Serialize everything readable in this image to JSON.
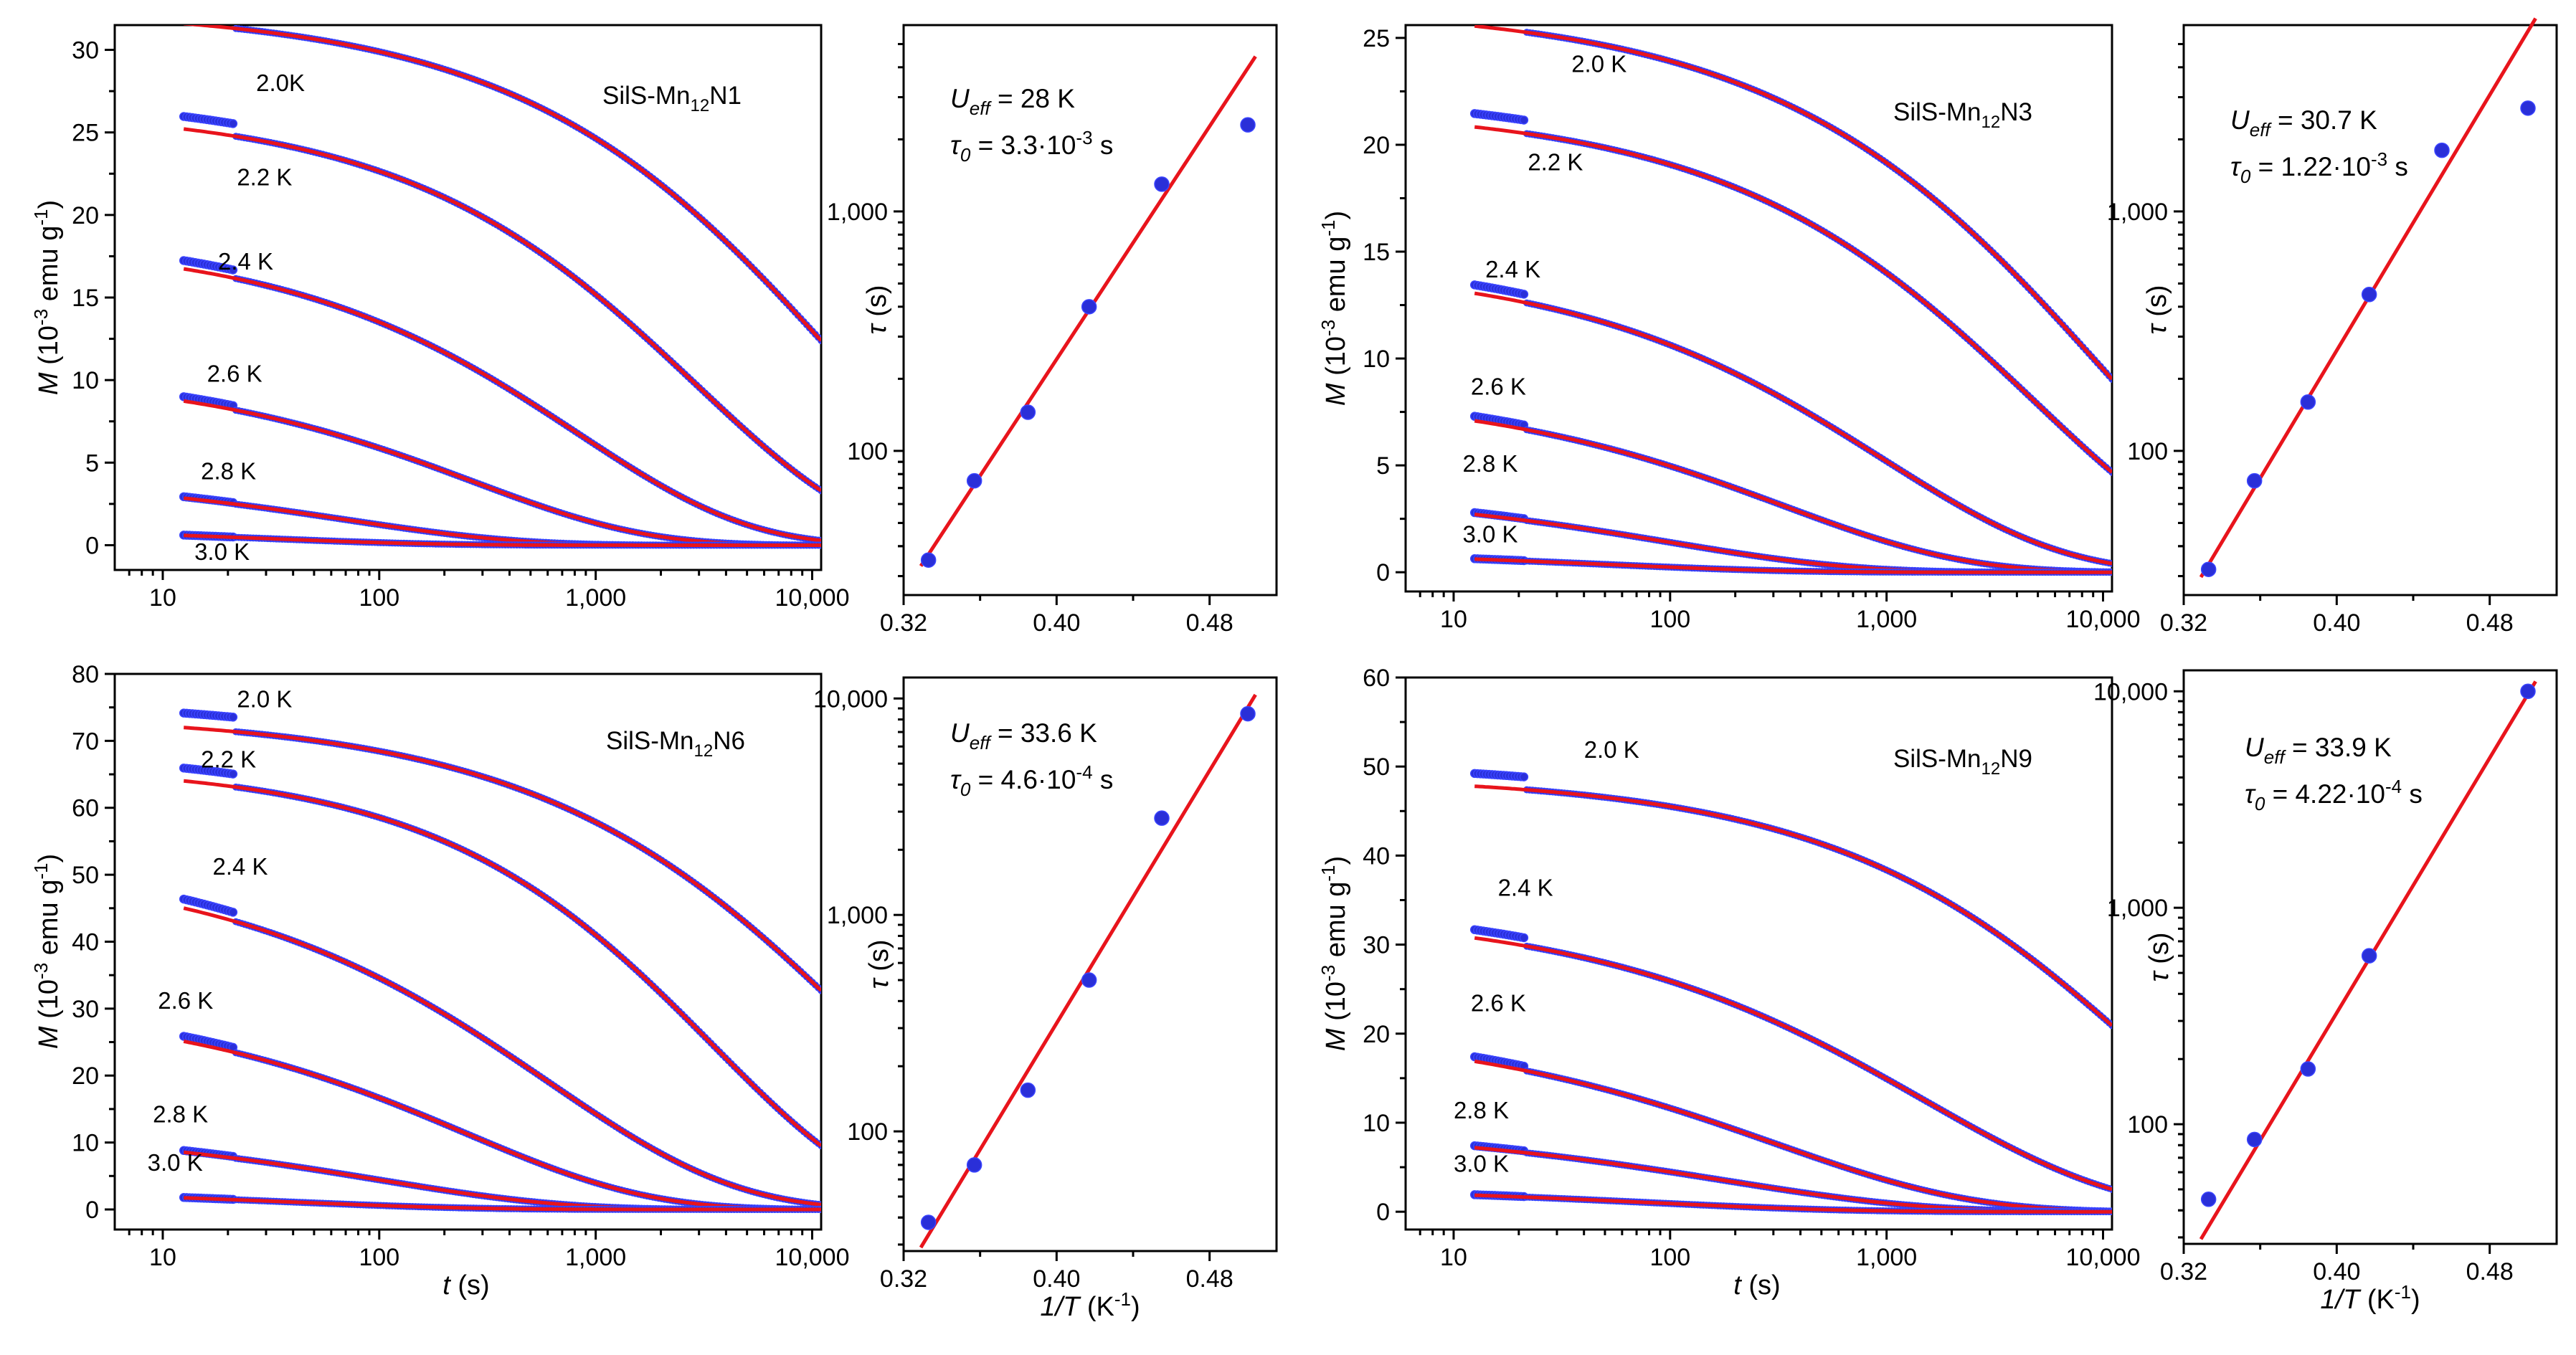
{
  "figure": {
    "colors": {
      "fit": "#e8141c",
      "data": "#2a2fd8",
      "data_edge": "#3a44ff"
    }
  },
  "chart_data": [
    {
      "id": "relax-n1",
      "type": "scatter",
      "sample": "SilS-Mn",
      "sample_sub": "12",
      "sample_suffix": "N1",
      "xscale": "log",
      "xlim": [
        6,
        11000
      ],
      "ylim": [
        -1.5,
        31.5
      ],
      "xticks": [
        10,
        100,
        1000,
        10000
      ],
      "xtick_labels": [
        "10",
        "100",
        "1,000",
        "10,000"
      ],
      "yticks": [
        0,
        5,
        10,
        15,
        20,
        25,
        30
      ],
      "xlabel": "",
      "ylabel": "",
      "series": [
        {
          "name": "2.0K",
          "M0": 32.5,
          "tau": 11800,
          "beta": 0.52,
          "label_at": [
            27,
            27.5
          ]
        },
        {
          "name": "2.2 K",
          "M0": 26.5,
          "tau": 2900,
          "beta": 0.55,
          "label_at": [
            22,
            21.8
          ]
        },
        {
          "name": "2.4 K",
          "M0": 18.5,
          "tau": 820,
          "beta": 0.55,
          "label_at": [
            18,
            16.7
          ]
        },
        {
          "name": "2.6 K",
          "M0": 10.5,
          "tau": 270,
          "beta": 0.55,
          "label_at": [
            16,
            9.9
          ]
        },
        {
          "name": "2.8 K",
          "M0": 4.2,
          "tau": 70,
          "beta": 0.55,
          "label_at": [
            15,
            4
          ]
        },
        {
          "name": "3.0 K",
          "M0": 1.1,
          "tau": 30,
          "beta": 0.55,
          "label_at": [
            14,
            -0.9
          ]
        }
      ]
    },
    {
      "id": "arrhenius-n1",
      "type": "scatter",
      "xlim": [
        0.32,
        0.515
      ],
      "yscale": "log",
      "ylim": [
        25,
        6000
      ],
      "xticks": [
        0.32,
        0.4,
        0.48
      ],
      "xtick_labels": [
        "0.32",
        "0.40",
        "0.48"
      ],
      "yticks": [
        100,
        1000
      ],
      "ytick_labels": [
        "100",
        "1,000"
      ],
      "x": [
        0.333,
        0.357,
        0.385,
        0.417,
        0.455,
        0.5
      ],
      "y": [
        35,
        75,
        145,
        400,
        1300,
        2300
      ],
      "fit": {
        "U": 28,
        "tau0": 0.0033
      },
      "ueff_value": "= 28 K",
      "tau0_value": "= 3.3·10",
      "tau0_exp": "-3",
      "unit": "s"
    },
    {
      "id": "relax-n3",
      "type": "scatter",
      "sample": "SilS-Mn",
      "sample_sub": "12",
      "sample_suffix": "N3",
      "xscale": "log",
      "xlim": [
        6,
        11000
      ],
      "ylim": [
        -0.9,
        25.6
      ],
      "xticks": [
        10,
        100,
        1000,
        10000
      ],
      "xtick_labels": [
        "10",
        "100",
        "1,000",
        "10,000"
      ],
      "yticks": [
        0,
        5,
        10,
        15,
        20,
        25
      ],
      "series": [
        {
          "name": "2.0 K",
          "M0": 26.5,
          "tau": 9500,
          "beta": 0.5,
          "label_at": [
            35,
            23.4
          ]
        },
        {
          "name": "2.2 K",
          "M0": 21.8,
          "tau": 4800,
          "beta": 0.52,
          "label_at": [
            22,
            18.8
          ]
        },
        {
          "name": "2.4 K",
          "M0": 14.5,
          "tau": 950,
          "beta": 0.52,
          "label_at": [
            14,
            13.8
          ]
        },
        {
          "name": "2.6 K",
          "M0": 8.5,
          "tau": 330,
          "beta": 0.52,
          "label_at": [
            12,
            8.3
          ]
        },
        {
          "name": "2.8 K",
          "M0": 3.8,
          "tau": 100,
          "beta": 0.52,
          "label_at": [
            11,
            4.7
          ]
        },
        {
          "name": "3.0 K",
          "M0": 1.0,
          "tau": 50,
          "beta": 0.52,
          "label_at": [
            11,
            1.4
          ]
        }
      ]
    },
    {
      "id": "arrhenius-n3",
      "type": "scatter",
      "xlim": [
        0.32,
        0.515
      ],
      "yscale": "log",
      "ylim": [
        25,
        6000
      ],
      "xticks": [
        0.32,
        0.4,
        0.48
      ],
      "xtick_labels": [
        "0.32",
        "0.40",
        "0.48"
      ],
      "yticks": [
        100,
        1000
      ],
      "ytick_labels": [
        "100",
        "1,000"
      ],
      "x": [
        0.333,
        0.357,
        0.385,
        0.417,
        0.455,
        0.5
      ],
      "y": [
        32,
        75,
        160,
        450,
        1800,
        2700
      ],
      "fit": {
        "U": 30.7,
        "tau0": 0.00122
      },
      "ueff_value": "= 30.7 K",
      "tau0_value": "= 1.22·10",
      "tau0_exp": "-3",
      "unit": "s"
    },
    {
      "id": "relax-n6",
      "type": "scatter",
      "sample": "SilS-Mn",
      "sample_sub": "12",
      "sample_suffix": "N6",
      "xscale": "log",
      "xlim": [
        6,
        11000
      ],
      "ylim": [
        -3,
        80
      ],
      "xticks": [
        10,
        100,
        1000,
        10000
      ],
      "xtick_labels": [
        "10",
        "100",
        "1,000",
        "10,000"
      ],
      "yticks": [
        0,
        10,
        20,
        30,
        40,
        50,
        60,
        70,
        80
      ],
      "xlabel": "(s)",
      "series": [
        {
          "name": "2.0 K",
          "M0": 74,
          "tau": 16500,
          "beta": 0.5,
          "label_at": [
            22,
            75
          ]
        },
        {
          "name": "2.2 K",
          "M0": 66.5,
          "tau": 3500,
          "beta": 0.58,
          "label_at": [
            15,
            66
          ]
        },
        {
          "name": "2.4 K",
          "M0": 52,
          "tau": 600,
          "beta": 0.5,
          "label_at": [
            17,
            50
          ]
        },
        {
          "name": "2.6 K",
          "M0": 31,
          "tau": 250,
          "beta": 0.52,
          "label_at": [
            9.5,
            30
          ]
        },
        {
          "name": "2.8 K",
          "M0": 12,
          "tau": 100,
          "beta": 0.52,
          "label_at": [
            9,
            13
          ]
        },
        {
          "name": "3.0 K",
          "M0": 3,
          "tau": 40,
          "beta": 0.52,
          "label_at": [
            8.5,
            5.8
          ]
        }
      ]
    },
    {
      "id": "arrhenius-n6",
      "type": "scatter",
      "xlim": [
        0.32,
        0.515
      ],
      "yscale": "log",
      "ylim": [
        28,
        12500
      ],
      "xticks": [
        0.32,
        0.4,
        0.48
      ],
      "xtick_labels": [
        "0.32",
        "0.40",
        "0.48"
      ],
      "yticks": [
        100,
        1000,
        10000
      ],
      "ytick_labels": [
        "100",
        "1,000",
        "10,000"
      ],
      "x": [
        0.333,
        0.357,
        0.385,
        0.417,
        0.455,
        0.5
      ],
      "y": [
        38,
        70,
        155,
        500,
        2800,
        8500
      ],
      "fit": {
        "U": 33.6,
        "tau0": 0.00046
      },
      "ueff_value": "= 33.6 K",
      "tau0_value": "= 4.6·10",
      "tau0_exp": "-4",
      "unit": "s",
      "xlabel": "(K",
      "xlabel_exp": "-1",
      "xlabel_close": ")"
    },
    {
      "id": "relax-n9",
      "type": "scatter",
      "sample": "SilS-Mn",
      "sample_sub": "12",
      "sample_suffix": "N9",
      "xscale": "log",
      "xlim": [
        6,
        11000
      ],
      "ylim": [
        -2,
        60
      ],
      "xticks": [
        10,
        100,
        1000,
        10000
      ],
      "xtick_labels": [
        "10",
        "100",
        "1,000",
        "10,000"
      ],
      "yticks": [
        0,
        10,
        20,
        30,
        40,
        50,
        60
      ],
      "xlabel": "(s)",
      "series": [
        {
          "name": "2.0 K",
          "M0": 49,
          "tau": 15000,
          "beta": 0.52,
          "label_at": [
            40,
            51
          ]
        },
        {
          "name": "2.4 K",
          "M0": 34,
          "tau": 1500,
          "beta": 0.48,
          "label_at": [
            16,
            35.5
          ]
        },
        {
          "name": "2.6 K",
          "M0": 21,
          "tau": 300,
          "beta": 0.48,
          "label_at": [
            12,
            22.5
          ]
        },
        {
          "name": "2.8 K",
          "M0": 9.5,
          "tau": 180,
          "beta": 0.48,
          "label_at": [
            10,
            10.5
          ]
        },
        {
          "name": "3.0 K",
          "M0": 2.8,
          "tau": 80,
          "beta": 0.48,
          "label_at": [
            10,
            4.5
          ]
        }
      ]
    },
    {
      "id": "arrhenius-n9",
      "type": "scatter",
      "xlim": [
        0.32,
        0.515
      ],
      "yscale": "log",
      "ylim": [
        28,
        12500
      ],
      "xticks": [
        0.32,
        0.4,
        0.48
      ],
      "xtick_labels": [
        "0.32",
        "0.40",
        "0.48"
      ],
      "yticks": [
        100,
        1000,
        10000
      ],
      "ytick_labels": [
        "100",
        "1,000",
        "10,000"
      ],
      "x": [
        0.333,
        0.357,
        0.385,
        0.417,
        0.5
      ],
      "y": [
        45,
        85,
        180,
        600,
        10000
      ],
      "fit": {
        "U": 33.9,
        "tau0": 0.000422
      },
      "ueff_value": "= 33.9 K",
      "tau0_value": "= 4.22·10",
      "tau0_exp": "-4",
      "unit": "s",
      "xlabel": "(K",
      "xlabel_exp": "-1",
      "xlabel_close": ")"
    }
  ],
  "labels": {
    "M_sym": "M",
    "M_unit": "(10",
    "M_exp": "-3",
    "M_unit2": "emu g",
    "M_exp2": "-1",
    "M_close": ")",
    "tau_sym": "τ",
    "tau_unit": "(s)",
    "t_sym": "t",
    "invT_sym": "1/T",
    "U_sym": "U",
    "U_sub": "eff",
    "tau0_sym": "τ",
    "tau0_sub": "0"
  }
}
